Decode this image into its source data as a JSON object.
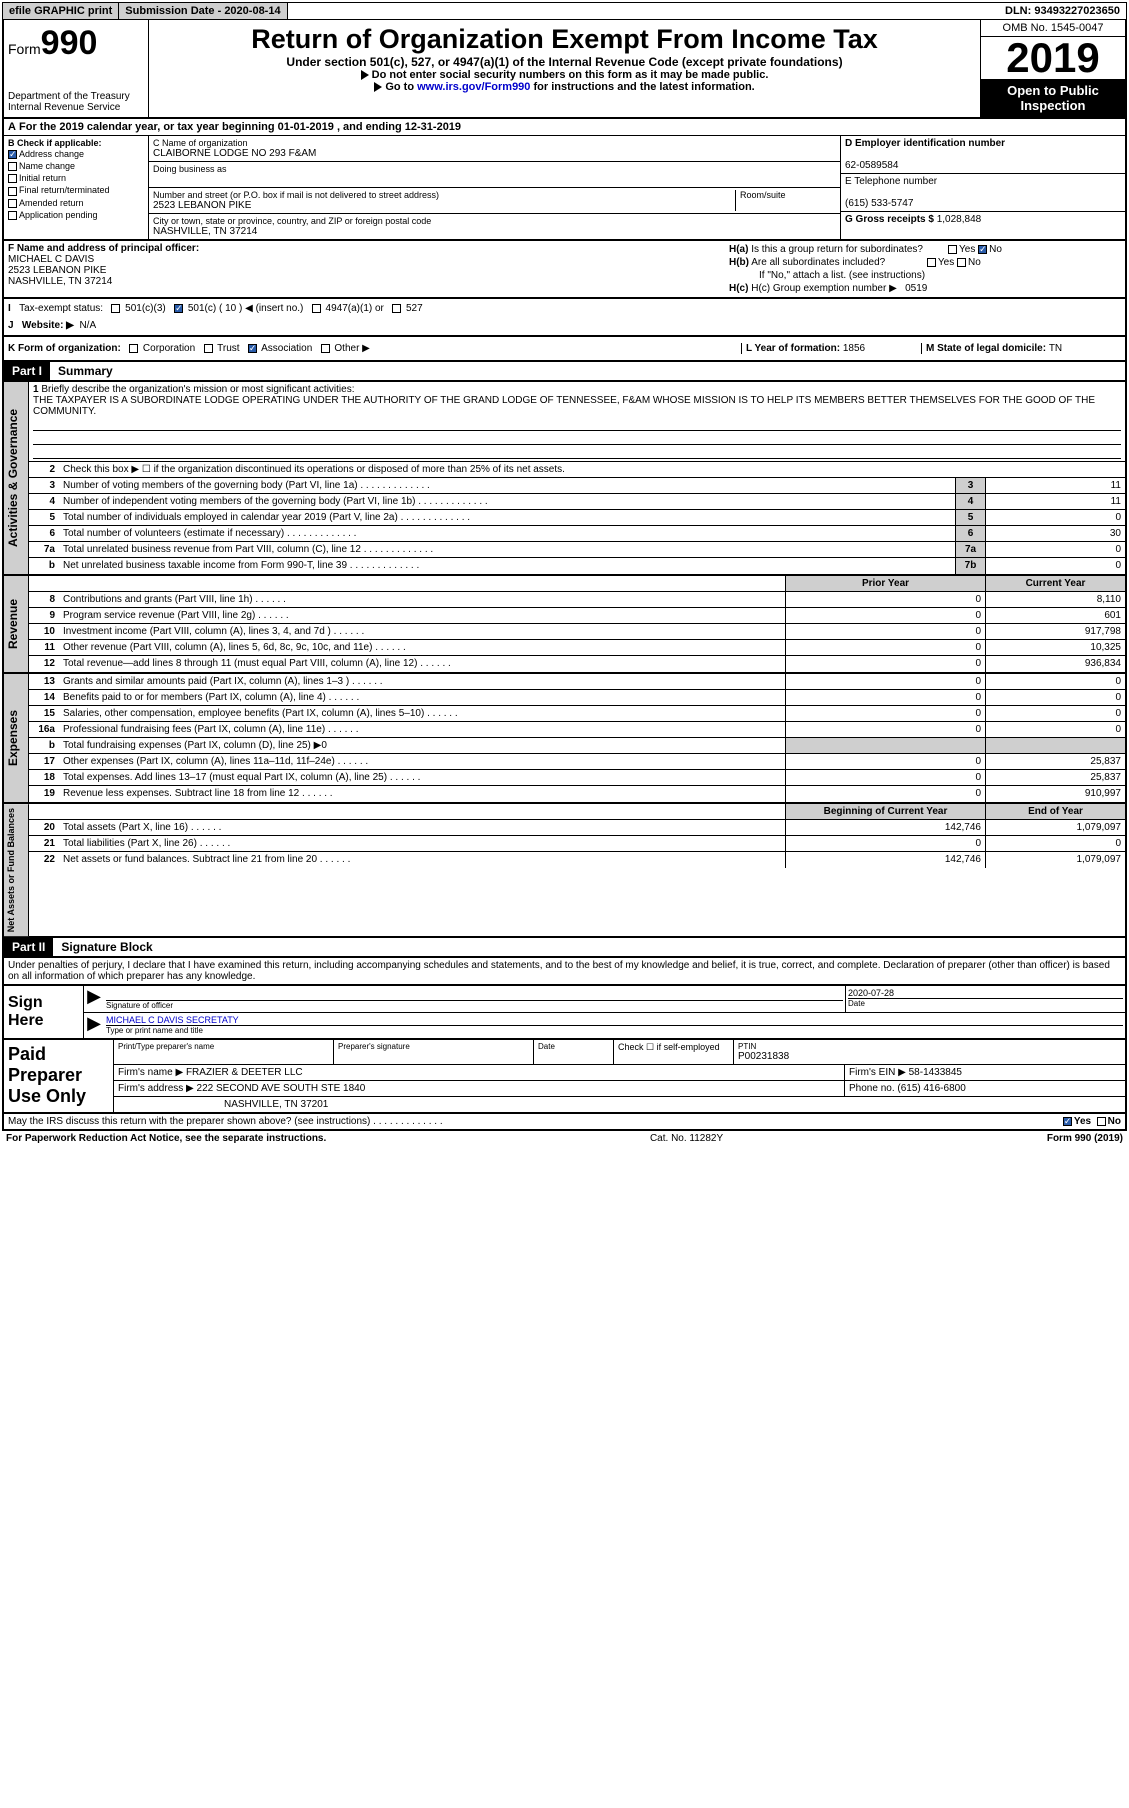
{
  "topbar": {
    "efile": "efile GRAPHIC print",
    "submission": "Submission Date - 2020-08-14",
    "dln": "DLN: 93493227023650"
  },
  "header": {
    "form_word": "Form",
    "form_num": "990",
    "dept": "Department of the Treasury\nInternal Revenue Service",
    "title": "Return of Organization Exempt From Income Tax",
    "sub": "Under section 501(c), 527, or 4947(a)(1) of the Internal Revenue Code (except private foundations)",
    "note1": "Do not enter social security numbers on this form as it may be made public.",
    "note2_pre": "Go to ",
    "note2_link": "www.irs.gov/Form990",
    "note2_post": " for instructions and the latest information.",
    "omb": "OMB No. 1545-0047",
    "year": "2019",
    "open": "Open to Public Inspection"
  },
  "row_a": "For the 2019 calendar year, or tax year beginning 01-01-2019    , and ending 12-31-2019",
  "checkb": {
    "title": "B Check if applicable:",
    "items": [
      "Address change",
      "Name change",
      "Initial return",
      "Final return/terminated",
      "Amended return",
      "Application pending"
    ],
    "checked": [
      true,
      false,
      false,
      false,
      false,
      false
    ]
  },
  "c": {
    "name_lbl": "C Name of organization",
    "name": "CLAIBORNE LODGE NO 293 F&AM",
    "dba_lbl": "Doing business as",
    "addr_lbl": "Number and street (or P.O. box if mail is not delivered to street address)",
    "room_lbl": "Room/suite",
    "addr": "2523 LEBANON PIKE",
    "city_lbl": "City or town, state or province, country, and ZIP or foreign postal code",
    "city": "NASHVILLE, TN  37214"
  },
  "d": {
    "ein_lbl": "D Employer identification number",
    "ein": "62-0589584",
    "tel_lbl": "E Telephone number",
    "tel": "(615) 533-5747",
    "gross_lbl": "G Gross receipts $ ",
    "gross": "1,028,848"
  },
  "f": {
    "lbl": "F  Name and address of principal officer:",
    "name": "MICHAEL C DAVIS",
    "addr1": "2523 LEBANON PIKE",
    "addr2": "NASHVILLE, TN  37214"
  },
  "h": {
    "a_lbl": "H(a)  Is this a group return for subordinates?",
    "b_lbl": "H(b)  Are all subordinates included?",
    "b_note": "If \"No,\" attach a list. (see instructions)",
    "c_lbl": "H(c)  Group exemption number ▶",
    "c_val": "0519",
    "yes": "Yes",
    "no": "No"
  },
  "i": {
    "lbl": "Tax-exempt status:",
    "opts": [
      "501(c)(3)",
      "501(c) ( 10 ) ◀ (insert no.)",
      "4947(a)(1) or",
      "527"
    ]
  },
  "j": {
    "lbl": "Website: ▶",
    "val": "N/A"
  },
  "k": {
    "lbl": "K Form of organization:",
    "opts": [
      "Corporation",
      "Trust",
      "Association",
      "Other ▶"
    ],
    "checked": 2,
    "l_lbl": "L Year of formation: ",
    "l_val": "1856",
    "m_lbl": "M State of legal domicile: ",
    "m_val": "TN"
  },
  "part1": {
    "hdr": "Part I",
    "title": "Summary"
  },
  "q1": {
    "num": "1",
    "lbl": "Briefly describe the organization's mission or most significant activities:",
    "txt": "THE TAXPAYER IS A SUBORDINATE LODGE OPERATING UNDER THE AUTHORITY OF THE GRAND LODGE OF TENNESSEE, F&AM WHOSE MISSION IS TO HELP ITS MEMBERS BETTER THEMSELVES FOR THE GOOD OF THE COMMUNITY."
  },
  "q2": {
    "num": "2",
    "lbl": "Check this box ▶ ☐  if the organization discontinued its operations or disposed of more than 25% of its net assets."
  },
  "lines_gov": [
    {
      "n": "3",
      "t": "Number of voting members of the governing body (Part VI, line 1a)",
      "c": "3",
      "v": "11"
    },
    {
      "n": "4",
      "t": "Number of independent voting members of the governing body (Part VI, line 1b)",
      "c": "4",
      "v": "11"
    },
    {
      "n": "5",
      "t": "Total number of individuals employed in calendar year 2019 (Part V, line 2a)",
      "c": "5",
      "v": "0"
    },
    {
      "n": "6",
      "t": "Total number of volunteers (estimate if necessary)",
      "c": "6",
      "v": "30"
    },
    {
      "n": "7a",
      "t": "Total unrelated business revenue from Part VIII, column (C), line 12",
      "c": "7a",
      "v": "0"
    },
    {
      "n": "b",
      "t": "Net unrelated business taxable income from Form 990-T, line 39",
      "c": "7b",
      "v": "0"
    }
  ],
  "pycy": {
    "prior": "Prior Year",
    "current": "Current Year"
  },
  "lines_rev": [
    {
      "n": "8",
      "t": "Contributions and grants (Part VIII, line 1h)",
      "p": "0",
      "v": "8,110"
    },
    {
      "n": "9",
      "t": "Program service revenue (Part VIII, line 2g)",
      "p": "0",
      "v": "601"
    },
    {
      "n": "10",
      "t": "Investment income (Part VIII, column (A), lines 3, 4, and 7d )",
      "p": "0",
      "v": "917,798"
    },
    {
      "n": "11",
      "t": "Other revenue (Part VIII, column (A), lines 5, 6d, 8c, 9c, 10c, and 11e)",
      "p": "0",
      "v": "10,325"
    },
    {
      "n": "12",
      "t": "Total revenue—add lines 8 through 11 (must equal Part VIII, column (A), line 12)",
      "p": "0",
      "v": "936,834"
    }
  ],
  "lines_exp": [
    {
      "n": "13",
      "t": "Grants and similar amounts paid (Part IX, column (A), lines 1–3 )",
      "p": "0",
      "v": "0"
    },
    {
      "n": "14",
      "t": "Benefits paid to or for members (Part IX, column (A), line 4)",
      "p": "0",
      "v": "0"
    },
    {
      "n": "15",
      "t": "Salaries, other compensation, employee benefits (Part IX, column (A), lines 5–10)",
      "p": "0",
      "v": "0"
    },
    {
      "n": "16a",
      "t": "Professional fundraising fees (Part IX, column (A), line 11e)",
      "p": "0",
      "v": "0"
    },
    {
      "n": "b",
      "t": "Total fundraising expenses (Part IX, column (D), line 25) ▶0",
      "p": "",
      "v": "",
      "gray": true
    },
    {
      "n": "17",
      "t": "Other expenses (Part IX, column (A), lines 11a–11d, 11f–24e)",
      "p": "0",
      "v": "25,837"
    },
    {
      "n": "18",
      "t": "Total expenses. Add lines 13–17 (must equal Part IX, column (A), line 25)",
      "p": "0",
      "v": "25,837"
    },
    {
      "n": "19",
      "t": "Revenue less expenses. Subtract line 18 from line 12",
      "p": "0",
      "v": "910,997"
    }
  ],
  "begend": {
    "b": "Beginning of Current Year",
    "e": "End of Year"
  },
  "lines_net": [
    {
      "n": "20",
      "t": "Total assets (Part X, line 16)",
      "p": "142,746",
      "v": "1,079,097"
    },
    {
      "n": "21",
      "t": "Total liabilities (Part X, line 26)",
      "p": "0",
      "v": "0"
    },
    {
      "n": "22",
      "t": "Net assets or fund balances. Subtract line 21 from line 20",
      "p": "142,746",
      "v": "1,079,097"
    }
  ],
  "side_labels": [
    "Activities & Governance",
    "Revenue",
    "Expenses",
    "Net Assets or Fund Balances"
  ],
  "part2": {
    "hdr": "Part II",
    "title": "Signature Block"
  },
  "sig_intro": "Under penalties of perjury, I declare that I have examined this return, including accompanying schedules and statements, and to the best of my knowledge and belief, it is true, correct, and complete. Declaration of preparer (other than officer) is based on all information of which preparer has any knowledge.",
  "sign": {
    "here": "Sign Here",
    "sig_lbl": "Signature of officer",
    "date_lbl": "Date",
    "date": "2020-07-28",
    "name": "MICHAEL C DAVIS SECRETATY",
    "name_lbl": "Type or print name and title"
  },
  "prep": {
    "title": "Paid Preparer Use Only",
    "pt_name_lbl": "Print/Type preparer's name",
    "sig_lbl": "Preparer's signature",
    "date_lbl": "Date",
    "check_lbl": "Check ☐ if self-employed",
    "ptin_lbl": "PTIN",
    "ptin": "P00231838",
    "firm_name_lbl": "Firm's name     ▶",
    "firm_name": "FRAZIER & DEETER LLC",
    "firm_ein_lbl": "Firm's EIN ▶",
    "firm_ein": "58-1433845",
    "firm_addr_lbl": "Firm's address ▶",
    "firm_addr1": "222 SECOND AVE SOUTH STE 1840",
    "firm_addr2": "NASHVILLE, TN  37201",
    "phone_lbl": "Phone no. ",
    "phone": "(615) 416-6800"
  },
  "discuss": {
    "q": "May the IRS discuss this return with the preparer shown above? (see instructions)",
    "yes": "Yes",
    "no": "No"
  },
  "foot": {
    "l": "For Paperwork Reduction Act Notice, see the separate instructions.",
    "m": "Cat. No. 11282Y",
    "r": "Form 990 (2019)"
  }
}
